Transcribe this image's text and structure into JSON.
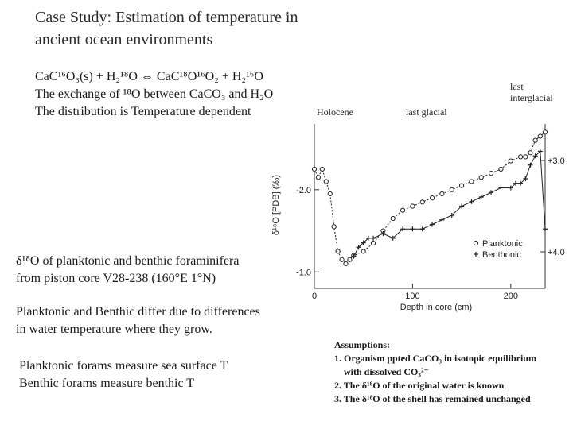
{
  "title": {
    "line1": "Case Study: Estimation of temperature in",
    "line2": "ancient ocean environments"
  },
  "reaction": {
    "line1": "CaC¹⁶O₃(s) + H₂¹⁸O ⇔ CaC¹⁸O¹⁶O₂ + H₂¹⁶O",
    "line2": "The exchange of ¹⁸O between CaCO₃ and H₂O",
    "line3": "The distribution is Temperature dependent"
  },
  "figure_labels": {
    "holocene": "Holocene",
    "last_glacial": "last glacial",
    "last_interglacial_1": "last",
    "last_interglacial_2": "interglacial"
  },
  "captions": {
    "core_1": "δ¹⁸O of planktonic and benthic foraminifera",
    "core_2": "from piston core V28-238 (160°E 1°N)",
    "differ_1": "Planktonic and Benthic differ due to differences",
    "differ_2": "in water temperature where they grow.",
    "measure_1": "Planktonic forams measure sea surface T",
    "measure_2": "Benthic forams measure benthic T"
  },
  "assumptions": {
    "heading": "Assumptions:",
    "item1a": "1. Organism ppted CaCO₃ in isotopic equilibrium",
    "item1b": "with dissolved CO₃²⁻",
    "item2": "2. The δ¹⁸O of the original water is known",
    "item3": "3. The δ¹⁸O of the shell has remained unchanged"
  },
  "chart_data": {
    "type": "line",
    "xlabel": "Depth in core (cm)",
    "ylabel": "δ¹⁸O [PDB] (‰)",
    "xlim": [
      0,
      235
    ],
    "x_ticks": [
      "0",
      "100",
      "200"
    ],
    "left_axis": {
      "ticks": [
        "-2.0",
        "-1.0"
      ],
      "ylim": [
        -0.8,
        -2.8
      ]
    },
    "right_axis": {
      "ticks": [
        "+3.0",
        "+4.0"
      ],
      "ylim": [
        4.4,
        2.6
      ]
    },
    "legend_position": "bottom-right",
    "series": [
      {
        "name": "Planktonic",
        "axis": "left",
        "marker": "circle",
        "x": [
          0,
          4,
          8,
          12,
          16,
          20,
          24,
          28,
          32,
          36,
          40,
          50,
          60,
          70,
          80,
          90,
          100,
          110,
          120,
          130,
          140,
          150,
          160,
          170,
          180,
          190,
          200,
          210,
          215,
          220,
          225,
          230,
          235
        ],
        "y": [
          -2.25,
          -2.15,
          -2.25,
          -2.1,
          -1.95,
          -1.55,
          -1.25,
          -1.15,
          -1.1,
          -1.15,
          -1.2,
          -1.25,
          -1.35,
          -1.5,
          -1.65,
          -1.75,
          -1.8,
          -1.85,
          -1.9,
          -1.95,
          -2.0,
          -2.05,
          -2.1,
          -2.15,
          -2.2,
          -2.25,
          -2.35,
          -2.4,
          -2.4,
          -2.45,
          -2.6,
          -2.65,
          -2.7
        ]
      },
      {
        "name": "Benthonic",
        "axis": "right",
        "marker": "plus",
        "x": [
          40,
          45,
          50,
          55,
          60,
          70,
          80,
          90,
          100,
          110,
          120,
          130,
          140,
          150,
          160,
          170,
          180,
          190,
          200,
          205,
          210,
          215,
          220,
          225,
          230,
          235
        ],
        "y": [
          4.05,
          3.95,
          3.9,
          3.85,
          3.85,
          3.8,
          3.85,
          3.75,
          3.75,
          3.75,
          3.7,
          3.65,
          3.6,
          3.5,
          3.45,
          3.4,
          3.35,
          3.3,
          3.3,
          3.25,
          3.25,
          3.2,
          3.05,
          2.95,
          2.9,
          3.75
        ]
      }
    ]
  }
}
